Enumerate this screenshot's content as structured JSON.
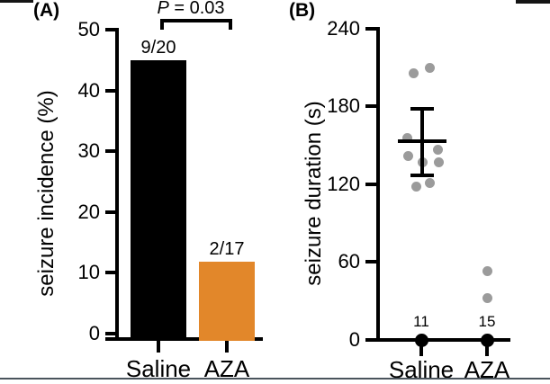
{
  "figure": {
    "panels": {
      "a": {
        "label": "(A)"
      },
      "b": {
        "label": "(B)"
      }
    }
  },
  "chart_data": [
    {
      "type": "bar",
      "panel": "A",
      "title": "",
      "ylabel": "seizure incidence (%)",
      "ylim": [
        0,
        50
      ],
      "yticks": [
        0,
        10,
        20,
        30,
        40,
        50
      ],
      "categories": [
        "Saline",
        "AZA"
      ],
      "values": [
        45.0,
        11.8
      ],
      "bar_labels": [
        "9/20",
        "2/17"
      ],
      "bar_colors": [
        "#000000",
        "#E2872A"
      ],
      "significance": {
        "label": "P = 0.03",
        "between": [
          "Saline",
          "AZA"
        ]
      },
      "grid": false,
      "legend": "none"
    },
    {
      "type": "scatter",
      "panel": "B",
      "title": "",
      "ylabel": "seizure duration (s)",
      "ylim": [
        0,
        240
      ],
      "yticks": [
        0,
        60,
        120,
        180,
        240
      ],
      "categories": [
        "Saline",
        "AZA"
      ],
      "point_color": "#9B9B9B",
      "zero_point_color": "#000000",
      "series": [
        {
          "name": "Saline",
          "values": [
            210,
            206,
            156,
            147,
            142,
            137,
            137,
            121,
            118
          ],
          "x_offsets": [
            9,
            -9,
            -16,
            18,
            -15,
            1,
            19,
            9,
            -6
          ],
          "mean": 153,
          "error_low": 127,
          "error_high": 178,
          "zero_count": "11",
          "zero_value": 0
        },
        {
          "name": "AZA",
          "values": [
            53,
            32
          ],
          "x_offsets": [
            0,
            0
          ],
          "zero_count": "15",
          "zero_value": 0
        }
      ],
      "grid": false,
      "legend": "none"
    }
  ],
  "styles": {
    "accent_orange": "#E2872A",
    "dot_gray": "#9B9B9B",
    "axis_black": "#000000",
    "bottom_rule": "#4A545C"
  }
}
